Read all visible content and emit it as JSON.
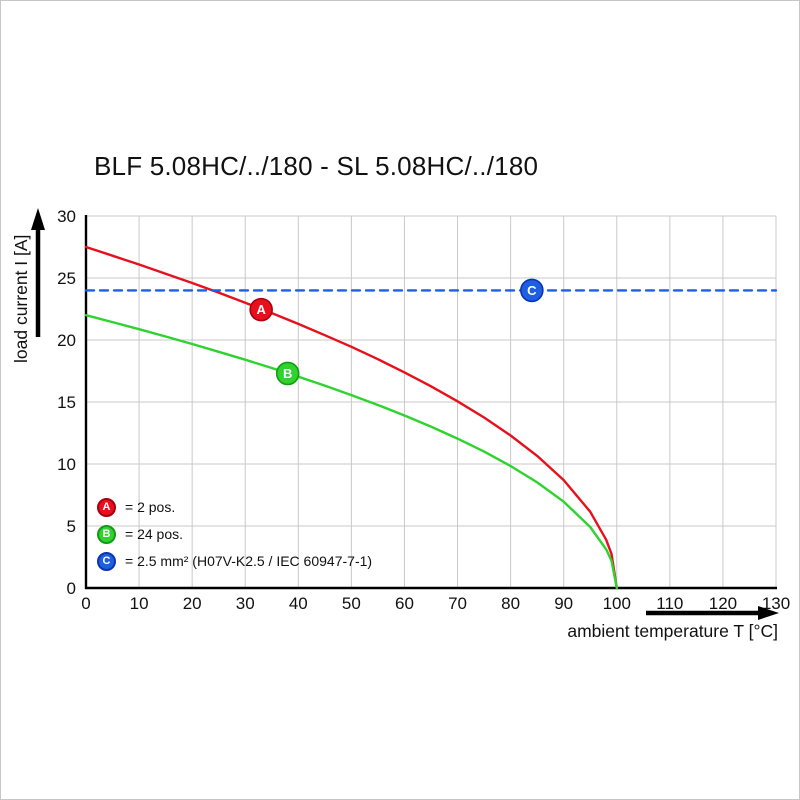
{
  "chart_data": {
    "type": "line",
    "title": "BLF 5.08HC/../180 - SL 5.08HC/../180",
    "xlabel": "ambient temperature T [°C]",
    "ylabel": "load current I [A]",
    "xlim": [
      0,
      130
    ],
    "ylim": [
      0,
      30
    ],
    "x_ticks": [
      0,
      10,
      20,
      30,
      40,
      50,
      60,
      70,
      80,
      90,
      100,
      110,
      120,
      130
    ],
    "y_ticks": [
      0,
      5,
      10,
      15,
      20,
      25,
      30
    ],
    "grid": true,
    "grid_color": "#c9c9c9",
    "axis_color": "#000000",
    "legend_position": "bottom-left",
    "series": [
      {
        "name": "A",
        "label": "= 2 pos.",
        "color": "#e8101c",
        "ring": "#a80010",
        "style": "solid",
        "points": [
          [
            0,
            27.5
          ],
          [
            5,
            26.8
          ],
          [
            10,
            26.09
          ],
          [
            15,
            25.35
          ],
          [
            20,
            24.6
          ],
          [
            25,
            23.82
          ],
          [
            30,
            23.01
          ],
          [
            35,
            22.17
          ],
          [
            40,
            21.3
          ],
          [
            45,
            20.39
          ],
          [
            50,
            19.45
          ],
          [
            55,
            18.45
          ],
          [
            60,
            17.39
          ],
          [
            65,
            16.27
          ],
          [
            70,
            15.06
          ],
          [
            75,
            13.75
          ],
          [
            80,
            12.3
          ],
          [
            85,
            10.65
          ],
          [
            90,
            8.7
          ],
          [
            95,
            6.15
          ],
          [
            98,
            3.89
          ],
          [
            99,
            2.75
          ],
          [
            100,
            0
          ]
        ]
      },
      {
        "name": "B",
        "label": "= 24 pos.",
        "color": "#2ed32e",
        "ring": "#149a14",
        "style": "solid",
        "points": [
          [
            0,
            22
          ],
          [
            5,
            21.44
          ],
          [
            10,
            20.87
          ],
          [
            15,
            20.28
          ],
          [
            20,
            19.68
          ],
          [
            25,
            19.05
          ],
          [
            30,
            18.41
          ],
          [
            35,
            17.74
          ],
          [
            40,
            17.04
          ],
          [
            45,
            16.32
          ],
          [
            50,
            15.56
          ],
          [
            55,
            14.76
          ],
          [
            60,
            13.91
          ],
          [
            65,
            13.02
          ],
          [
            70,
            12.05
          ],
          [
            75,
            11
          ],
          [
            80,
            9.84
          ],
          [
            85,
            8.52
          ],
          [
            90,
            6.96
          ],
          [
            95,
            4.92
          ],
          [
            98,
            3.11
          ],
          [
            99,
            2.2
          ],
          [
            100,
            0
          ]
        ]
      },
      {
        "name": "C",
        "label": "= 2.5 mm² (H07V-K2.5 / IEC 60947-7-1)",
        "color": "#1d5fe0",
        "ring": "#0a34b8",
        "style": "dashed",
        "points": [
          [
            0,
            24
          ],
          [
            130,
            24
          ]
        ]
      }
    ],
    "markers": [
      {
        "letter": "A",
        "x": 33,
        "y": 22.45,
        "color": "#e8101c",
        "ring": "#a80010"
      },
      {
        "letter": "B",
        "x": 38,
        "y": 17.3,
        "color": "#2ed32e",
        "ring": "#149a14"
      },
      {
        "letter": "C",
        "x": 84,
        "y": 24,
        "color": "#1d5fe0",
        "ring": "#0a34b8"
      }
    ]
  }
}
